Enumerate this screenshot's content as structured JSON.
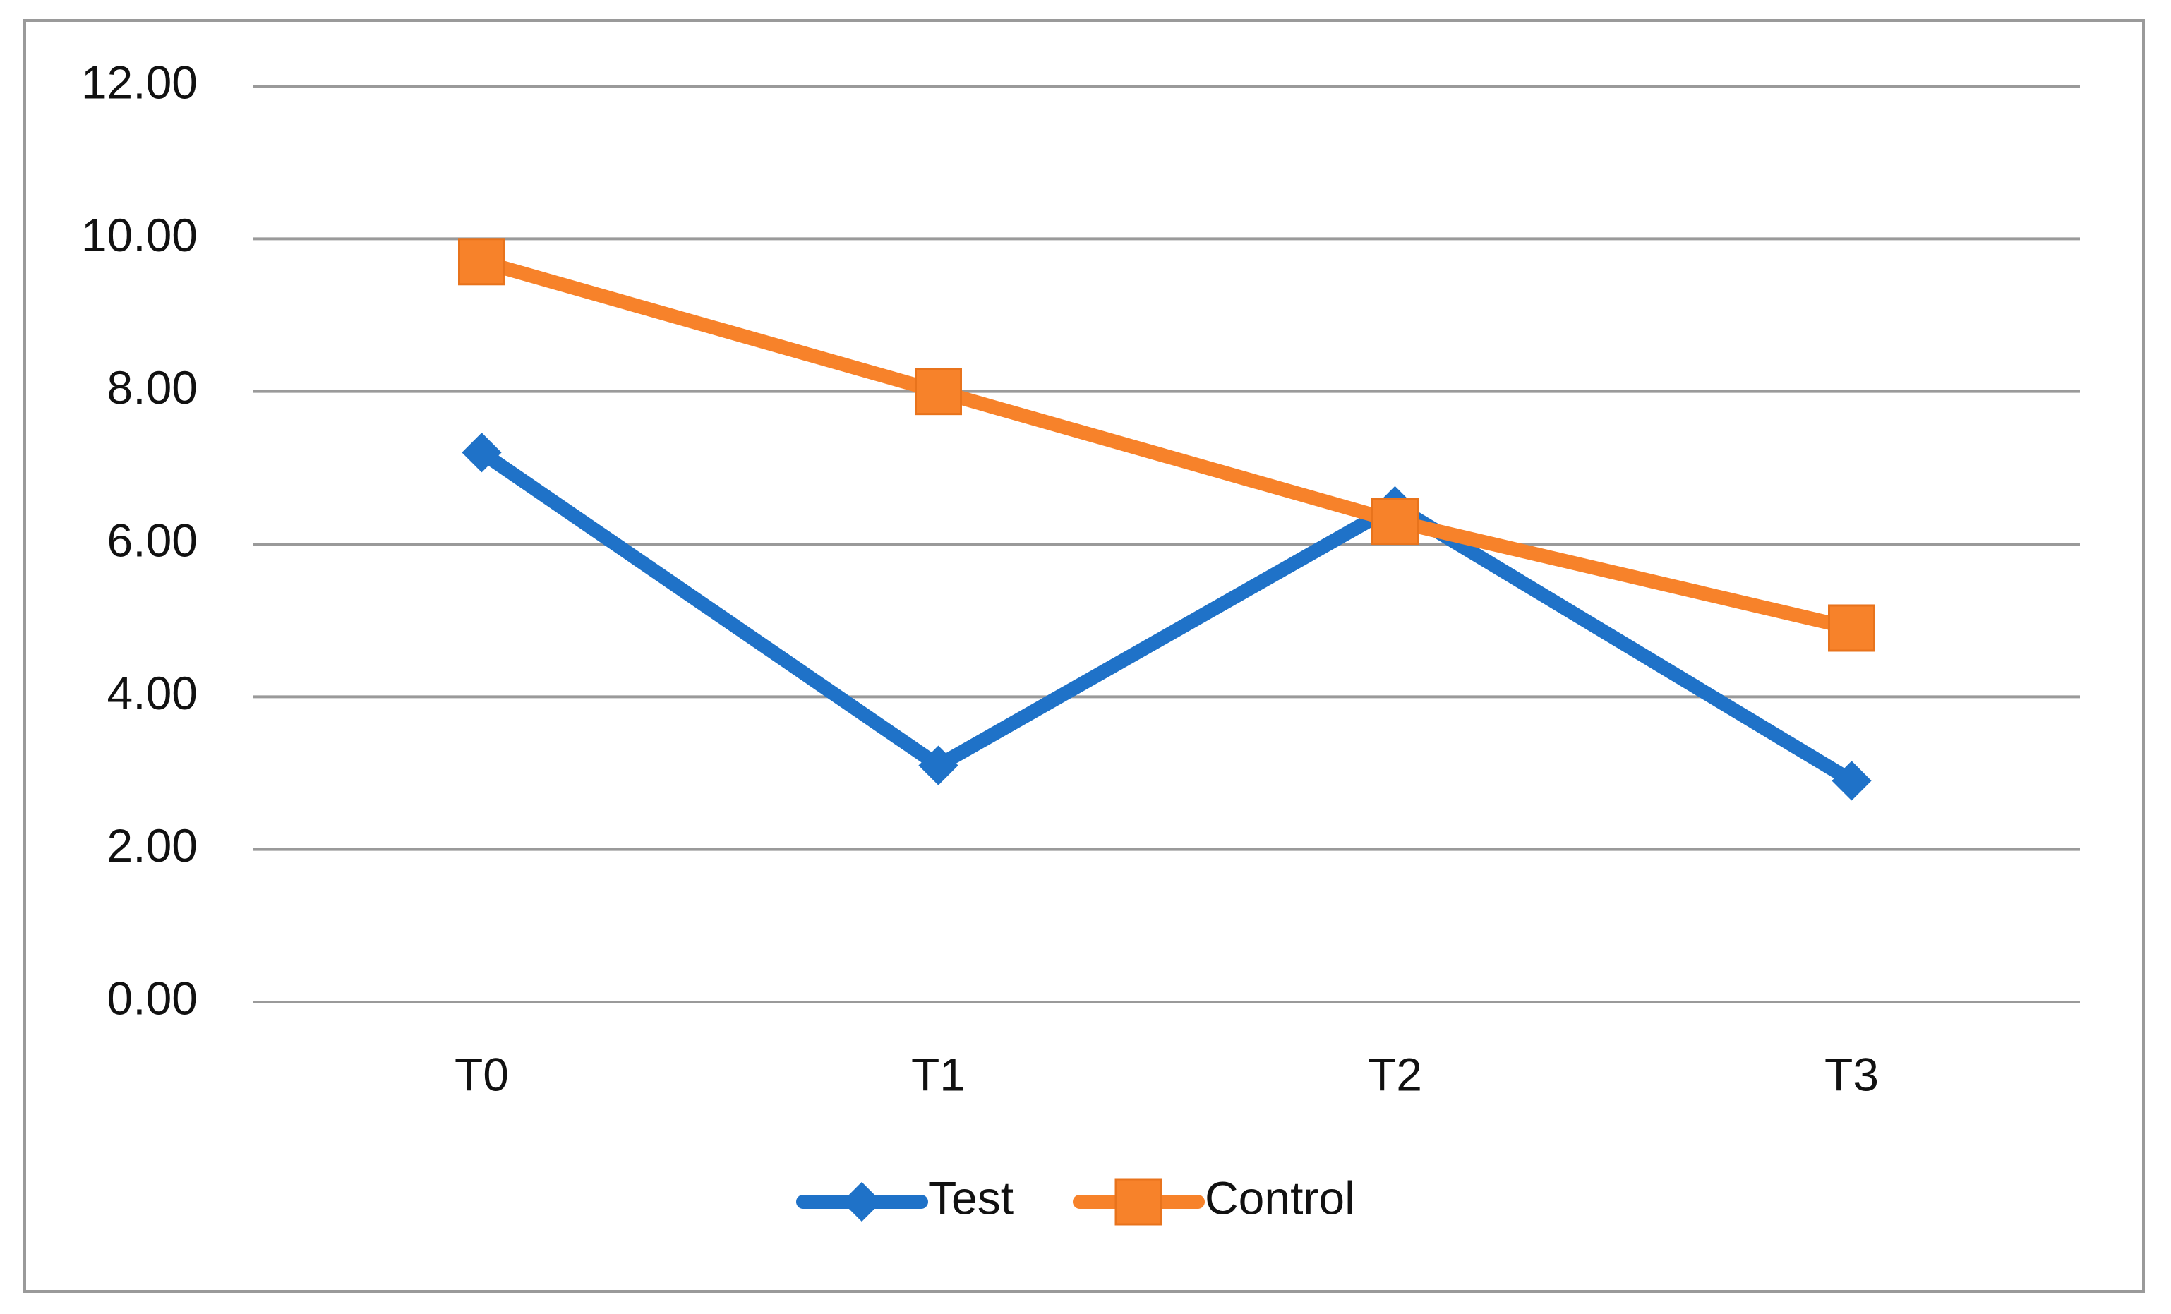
{
  "chart_data": {
    "type": "line",
    "categories": [
      "T0",
      "T1",
      "T2",
      "T3"
    ],
    "series": [
      {
        "name": "Test",
        "color": "#1f72c8",
        "marker": "diamond",
        "values": [
          7.2,
          3.1,
          6.5,
          2.9
        ]
      },
      {
        "name": "Control",
        "color": "#f7822a",
        "marker": "square",
        "values": [
          9.7,
          8.0,
          6.3,
          4.9
        ]
      }
    ],
    "ylim": [
      0,
      12
    ],
    "yticks": [
      {
        "value": 0,
        "label": "0.00"
      },
      {
        "value": 2,
        "label": "2.00"
      },
      {
        "value": 4,
        "label": "4.00"
      },
      {
        "value": 6,
        "label": "6.00"
      },
      {
        "value": 8,
        "label": "8.00"
      },
      {
        "value": 10,
        "label": "10.00"
      },
      {
        "value": 12,
        "label": "12.00"
      }
    ],
    "grid": true,
    "legend": "bottom"
  }
}
